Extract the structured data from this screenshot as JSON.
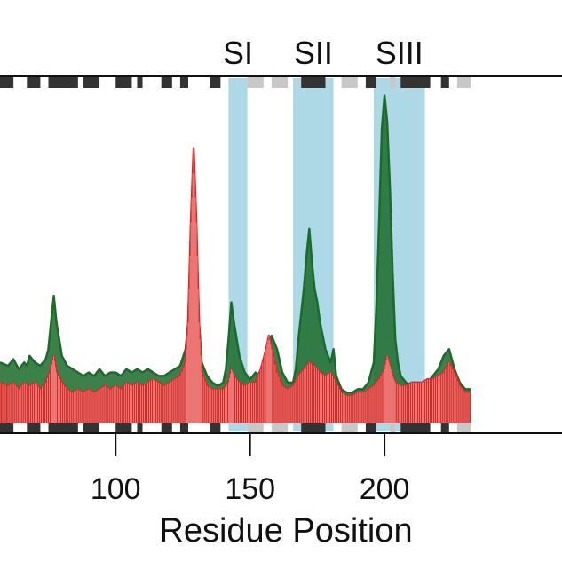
{
  "chart_data": {
    "type": "line",
    "title": "",
    "xlabel": "Residue Position",
    "ylabel": "",
    "xlim": [
      57,
      266
    ],
    "ylim": [
      0,
      1
    ],
    "grid": false,
    "legend": "none",
    "x_ticks": [
      100,
      150,
      200
    ],
    "x_tick_labels": [
      "100",
      "150",
      "200"
    ],
    "regions": [
      {
        "label": "SI",
        "start": 142,
        "end": 149
      },
      {
        "label": "SII",
        "start": 166,
        "end": 181
      },
      {
        "label": "SIII",
        "start": 196,
        "end": 215
      }
    ],
    "secondary_structure": [
      {
        "start": 57,
        "end": 62,
        "kind": "dark"
      },
      {
        "start": 67,
        "end": 72,
        "kind": "dark"
      },
      {
        "start": 75,
        "end": 86,
        "kind": "dark"
      },
      {
        "start": 88,
        "end": 94,
        "kind": "dark"
      },
      {
        "start": 100,
        "end": 106,
        "kind": "dark"
      },
      {
        "start": 108,
        "end": 110,
        "kind": "dark"
      },
      {
        "start": 117,
        "end": 121,
        "kind": "dark"
      },
      {
        "start": 124,
        "end": 127,
        "kind": "dark"
      },
      {
        "start": 135,
        "end": 139,
        "kind": "dark"
      },
      {
        "start": 149,
        "end": 155,
        "kind": "light"
      },
      {
        "start": 158,
        "end": 164,
        "kind": "light"
      },
      {
        "start": 169,
        "end": 178,
        "kind": "dark"
      },
      {
        "start": 184,
        "end": 190,
        "kind": "light"
      },
      {
        "start": 193,
        "end": 197,
        "kind": "dark"
      },
      {
        "start": 202,
        "end": 204,
        "kind": "light"
      },
      {
        "start": 206,
        "end": 217,
        "kind": "dark"
      },
      {
        "start": 221,
        "end": 224,
        "kind": "dark"
      },
      {
        "start": 227,
        "end": 232,
        "kind": "light"
      }
    ],
    "series": [
      {
        "color": "#1b6b2a",
        "x": [
          57,
          60,
          62,
          64,
          66,
          67,
          68,
          70,
          72,
          74,
          75,
          76,
          77,
          78,
          80,
          82,
          84,
          86,
          88,
          90,
          92,
          94,
          96,
          98,
          100,
          102,
          104,
          106,
          108,
          110,
          112,
          114,
          116,
          118,
          120,
          122,
          124,
          126,
          127,
          128,
          129,
          130,
          131,
          132,
          134,
          136,
          138,
          140,
          141,
          142,
          143,
          144,
          146,
          148,
          150,
          152,
          154,
          156,
          157,
          158,
          160,
          162,
          164,
          166,
          167,
          168,
          170,
          171,
          172,
          173,
          174,
          175,
          176,
          178,
          180,
          181,
          182,
          184,
          186,
          188,
          190,
          192,
          194,
          196,
          197,
          198,
          199,
          200,
          201,
          202,
          203,
          204,
          205,
          206,
          208,
          210,
          212,
          214,
          216,
          218,
          220,
          222,
          224,
          226,
          228,
          230,
          232
        ],
        "y": [
          0.18,
          0.17,
          0.19,
          0.16,
          0.18,
          0.17,
          0.2,
          0.18,
          0.17,
          0.19,
          0.22,
          0.3,
          0.38,
          0.3,
          0.2,
          0.17,
          0.16,
          0.15,
          0.14,
          0.15,
          0.14,
          0.16,
          0.14,
          0.15,
          0.15,
          0.14,
          0.16,
          0.15,
          0.16,
          0.15,
          0.16,
          0.15,
          0.14,
          0.14,
          0.15,
          0.16,
          0.17,
          0.22,
          0.3,
          0.55,
          0.8,
          0.55,
          0.3,
          0.18,
          0.14,
          0.12,
          0.11,
          0.12,
          0.16,
          0.25,
          0.36,
          0.3,
          0.2,
          0.15,
          0.13,
          0.15,
          0.14,
          0.18,
          0.22,
          0.26,
          0.22,
          0.15,
          0.12,
          0.12,
          0.16,
          0.25,
          0.4,
          0.5,
          0.58,
          0.48,
          0.4,
          0.36,
          0.3,
          0.22,
          0.18,
          0.22,
          0.14,
          0.1,
          0.09,
          0.09,
          0.1,
          0.1,
          0.12,
          0.18,
          0.35,
          0.6,
          0.88,
          0.98,
          0.9,
          0.7,
          0.45,
          0.25,
          0.18,
          0.14,
          0.12,
          0.11,
          0.11,
          0.12,
          0.12,
          0.14,
          0.16,
          0.2,
          0.22,
          0.16,
          0.12,
          0.1,
          0.1
        ]
      },
      {
        "color": "#e02424",
        "x": [
          57,
          60,
          62,
          64,
          66,
          68,
          70,
          72,
          74,
          76,
          77,
          78,
          80,
          82,
          84,
          86,
          88,
          90,
          92,
          94,
          96,
          98,
          100,
          102,
          104,
          106,
          108,
          110,
          112,
          114,
          116,
          118,
          120,
          122,
          124,
          126,
          127,
          128,
          129,
          130,
          131,
          132,
          134,
          136,
          138,
          140,
          142,
          143,
          144,
          146,
          148,
          150,
          152,
          154,
          156,
          157,
          158,
          160,
          162,
          164,
          166,
          168,
          170,
          172,
          174,
          176,
          178,
          180,
          182,
          184,
          186,
          188,
          190,
          192,
          194,
          196,
          198,
          200,
          201,
          202,
          203,
          204,
          206,
          208,
          210,
          212,
          214,
          216,
          218,
          220,
          222,
          224,
          226,
          228,
          230,
          232
        ],
        "y": [
          0.12,
          0.11,
          0.12,
          0.1,
          0.12,
          0.11,
          0.12,
          0.1,
          0.12,
          0.16,
          0.2,
          0.15,
          0.12,
          0.1,
          0.09,
          0.1,
          0.09,
          0.1,
          0.09,
          0.1,
          0.11,
          0.1,
          0.11,
          0.1,
          0.12,
          0.11,
          0.12,
          0.11,
          0.12,
          0.13,
          0.12,
          0.11,
          0.12,
          0.13,
          0.14,
          0.18,
          0.3,
          0.6,
          0.82,
          0.6,
          0.3,
          0.15,
          0.11,
          0.1,
          0.1,
          0.1,
          0.12,
          0.16,
          0.14,
          0.12,
          0.11,
          0.12,
          0.12,
          0.16,
          0.22,
          0.26,
          0.22,
          0.15,
          0.11,
          0.1,
          0.11,
          0.14,
          0.16,
          0.18,
          0.17,
          0.15,
          0.14,
          0.15,
          0.12,
          0.09,
          0.08,
          0.08,
          0.09,
          0.09,
          0.1,
          0.11,
          0.13,
          0.16,
          0.2,
          0.17,
          0.14,
          0.12,
          0.11,
          0.11,
          0.12,
          0.12,
          0.12,
          0.13,
          0.13,
          0.14,
          0.15,
          0.18,
          0.15,
          0.11,
          0.09,
          0.09
        ]
      }
    ]
  }
}
